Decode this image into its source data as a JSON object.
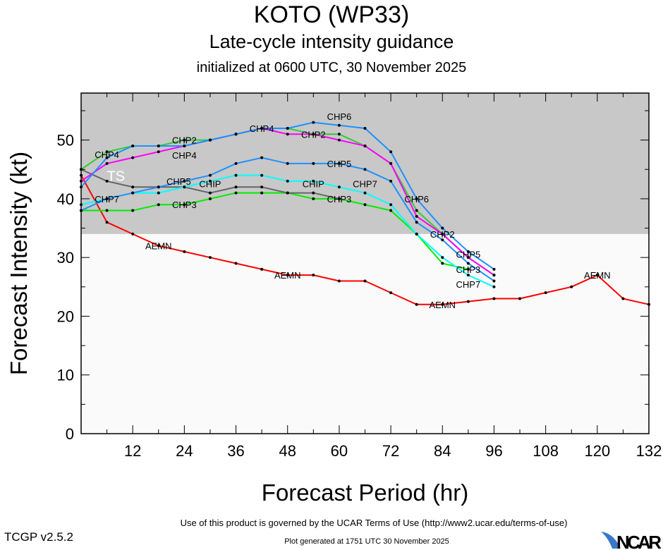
{
  "header": {
    "title": "KOTO (WP33)",
    "subtitle": "Late-cycle intensity guidance",
    "initialized": "initialized at 0600 UTC, 30 November 2025"
  },
  "footer": {
    "terms": "Use of this product is governed by the UCAR Terms of Use (http://www2.ucar.edu/terms-of-use)",
    "generated": "Plot generated at 1751 UTC   30 November 2025",
    "version": "TCGP v2.5.2",
    "logo": "NCAR"
  },
  "chart_data": {
    "type": "line",
    "xlabel": "Forecast Period (hr)",
    "ylabel": "Forecast Intensity (kt)",
    "xlim": [
      0,
      132
    ],
    "ylim": [
      0,
      58
    ],
    "xticks": [
      12,
      24,
      36,
      48,
      60,
      72,
      84,
      96,
      108,
      120,
      132
    ],
    "yticks": [
      0,
      10,
      20,
      30,
      40,
      50
    ],
    "grid": false,
    "shaded_region": {
      "label": "TS",
      "from": 34,
      "color": "#c8c8c8"
    },
    "series": [
      {
        "name": "AEMN",
        "color": "#ff0000",
        "x": [
          0,
          6,
          12,
          18,
          24,
          30,
          36,
          42,
          48,
          54,
          60,
          66,
          72,
          78,
          84,
          90,
          96,
          102,
          108,
          114,
          120,
          126,
          132
        ],
        "y": [
          44,
          36,
          34,
          32,
          31,
          30,
          29,
          28,
          27,
          27,
          26,
          26,
          24,
          22,
          22,
          22.5,
          23,
          23,
          24,
          25,
          27,
          23,
          22
        ]
      },
      {
        "name": "CHP3",
        "color": "#00ee00",
        "x": [
          0,
          6,
          12,
          18,
          24,
          30,
          36,
          42,
          48,
          54,
          60,
          66,
          72,
          78,
          84,
          90
        ],
        "y": [
          38,
          38,
          38,
          39,
          39,
          40,
          41,
          41,
          41,
          40,
          40,
          39,
          38,
          34,
          29,
          28
        ]
      },
      {
        "name": "CHIP",
        "color": "#666666",
        "x": [
          0,
          6,
          12,
          18,
          24,
          30,
          36,
          42,
          48,
          54,
          60
        ],
        "y": [
          45,
          43,
          42,
          42,
          42,
          41,
          42,
          42,
          41,
          41,
          40
        ]
      },
      {
        "name": "CHP7",
        "color": "#00ffff",
        "x": [
          0,
          6,
          12,
          18,
          24,
          30,
          36,
          42,
          48,
          54,
          60,
          66,
          72,
          78,
          84,
          90,
          96
        ],
        "y": [
          39,
          40,
          41,
          41,
          42,
          43,
          44,
          44,
          43,
          43,
          42,
          41,
          39,
          34,
          30,
          27,
          25
        ]
      },
      {
        "name": "CHP5",
        "color": "#1e90ff",
        "x": [
          0,
          6,
          12,
          18,
          24,
          30,
          36,
          42,
          48,
          54,
          60,
          66,
          72,
          78,
          84,
          90,
          96
        ],
        "y": [
          38,
          40,
          41,
          42,
          43,
          44,
          46,
          47,
          46,
          46,
          46,
          45,
          43,
          36,
          33,
          29,
          26
        ]
      },
      {
        "name": "CHP2",
        "color": "#33cc33",
        "x": [
          0,
          6,
          12,
          18,
          24,
          30,
          36,
          42,
          48,
          54,
          60,
          66,
          72,
          78,
          84,
          90,
          96
        ],
        "y": [
          45,
          48,
          49,
          49,
          50,
          50,
          51,
          52,
          52,
          51,
          51,
          49,
          46,
          38,
          34,
          30,
          27
        ]
      },
      {
        "name": "CHP4",
        "color": "#ff00ff",
        "x": [
          0,
          6,
          12,
          18,
          24,
          30,
          36,
          42,
          48,
          54,
          60,
          66,
          72,
          78,
          84,
          90,
          96
        ],
        "y": [
          43,
          46,
          47,
          48,
          49,
          50,
          51,
          52,
          51,
          51,
          50,
          49,
          46,
          37,
          34,
          30,
          27
        ]
      },
      {
        "name": "CHP6",
        "color": "#1e90ff",
        "x": [
          0,
          6,
          12,
          18,
          24,
          30,
          36,
          42,
          48,
          54,
          60,
          66,
          72,
          78,
          84,
          90,
          96
        ],
        "y": [
          42,
          47,
          49,
          49,
          49,
          50,
          51,
          52,
          52,
          53,
          52.5,
          52,
          48,
          40,
          35,
          31,
          28
        ]
      }
    ]
  }
}
